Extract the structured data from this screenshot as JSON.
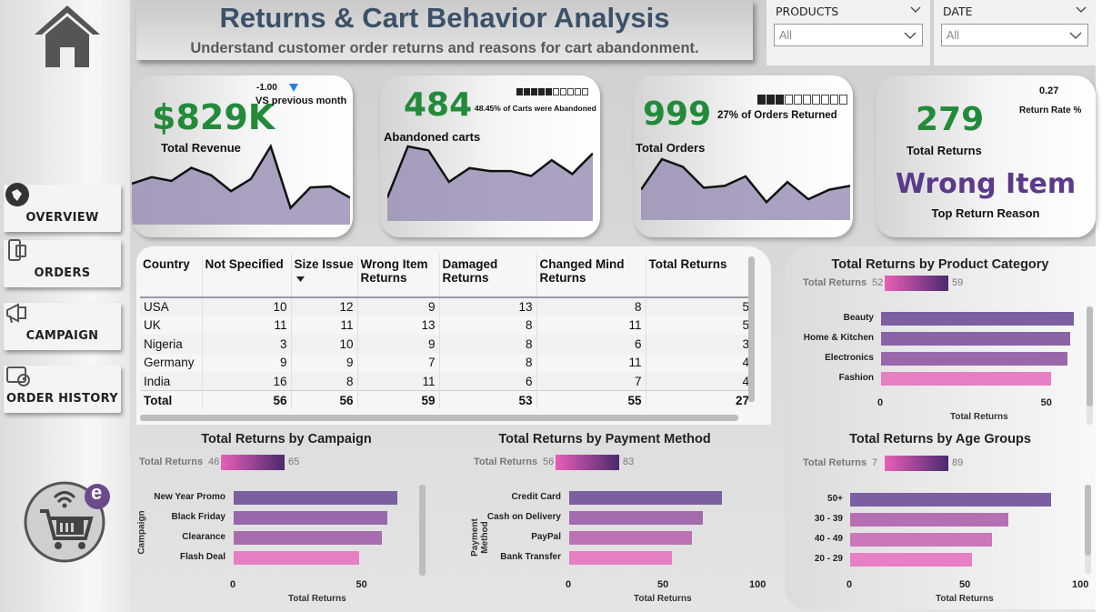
{
  "page": {
    "title": "Returns & Cart Behavior Analysis",
    "subtitle": "Understand customer order returns and reasons for cart abandonment."
  },
  "sidebar": {
    "items": [
      {
        "label": "OVERVIEW",
        "icon": "overview-icon"
      },
      {
        "label": "ORDERS",
        "icon": "orders-icon"
      },
      {
        "label": "CAMPAIGN",
        "icon": "megaphone-icon"
      },
      {
        "label": "ORDER HISTORY",
        "icon": "history-icon"
      }
    ],
    "logo_letter": "e"
  },
  "filters": {
    "products": {
      "label": "PRODUCTS",
      "value": "All"
    },
    "date": {
      "label": "DATE",
      "value": "All"
    }
  },
  "kpis": {
    "revenue": {
      "value": "$829K",
      "label": "Total Revenue",
      "delta": "-1.00",
      "delta_label": "VS previous month"
    },
    "abandoned": {
      "value": "484",
      "label": "Abandoned carts",
      "note": "48.45% of Carts were Abandoned",
      "progress": 0.48
    },
    "orders": {
      "value": "999",
      "label": "Total Orders",
      "note": "27% of Orders Returned",
      "progress": 0.27
    },
    "returns": {
      "value": "279",
      "label": "Total Returns",
      "rate": "0.27",
      "rate_label": "Return Rate %",
      "top_reason": "Wrong Item",
      "top_reason_label": "Top Return Reason"
    }
  },
  "colors": {
    "kpi_green": "#228b3a",
    "title_blue": "#3b5169",
    "reason_purple": "#5b3a8a",
    "spark_fill": "#9c92b6",
    "gradient_low": "#e85fb8",
    "gradient_high": "#4a2a6e"
  },
  "table": {
    "headers": [
      "Country",
      "Not Specified",
      "Size Issue",
      "Wrong Item Returns",
      "Damaged Returns",
      "Changed Mind Returns",
      "Total Returns"
    ],
    "rows": [
      [
        "USA",
        "10",
        "12",
        "9",
        "13",
        "8",
        "5"
      ],
      [
        "UK",
        "11",
        "11",
        "13",
        "8",
        "11",
        "5"
      ],
      [
        "Nigeria",
        "3",
        "10",
        "9",
        "8",
        "6",
        "3"
      ],
      [
        "Germany",
        "9",
        "9",
        "7",
        "8",
        "11",
        "4"
      ],
      [
        "India",
        "16",
        "8",
        "11",
        "6",
        "7",
        "4"
      ]
    ],
    "total": [
      "Total",
      "56",
      "56",
      "59",
      "53",
      "55",
      "27"
    ]
  },
  "chart_data": [
    {
      "type": "bar",
      "title": "Total Returns by Product Category",
      "categories": [
        "Beauty",
        "Home & Kitchen",
        "Electronics",
        "Fashion"
      ],
      "values": [
        59,
        58,
        57,
        52
      ],
      "legend_label": "Total Returns",
      "legend_min": "52",
      "legend_max": "59",
      "xlabel": "Total Returns",
      "ylabel": "",
      "xlim": [
        0,
        59
      ],
      "ticks": [
        "0",
        "50"
      ],
      "tick_values": [
        0,
        50
      ]
    },
    {
      "type": "bar",
      "title": "Total Returns by Campaign",
      "categories": [
        "New Year Promo",
        "Black Friday",
        "Clearance",
        "Flash Deal"
      ],
      "values": [
        65,
        61,
        59,
        50
      ],
      "legend_label": "Total Returns",
      "legend_min": "46",
      "legend_max": "65",
      "xlabel": "Total Returns",
      "ylabel": "Campaign",
      "xlim": [
        0,
        65
      ],
      "ticks": [
        "0",
        "50"
      ],
      "tick_values": [
        0,
        50
      ]
    },
    {
      "type": "bar",
      "title": "Total Returns by Payment Method",
      "categories": [
        "Credit Card",
        "Cash on Delivery",
        "PayPal",
        "Bank Transfer"
      ],
      "values": [
        83,
        73,
        67,
        56
      ],
      "legend_label": "Total Returns",
      "legend_min": "56",
      "legend_max": "83",
      "xlabel": "Total Returns",
      "ylabel": "Payment Method",
      "xlim": [
        0,
        100
      ],
      "ticks": [
        "0",
        "50",
        "100"
      ],
      "tick_values": [
        0,
        50,
        100
      ]
    },
    {
      "type": "bar",
      "title": "Total Returns by Age Groups",
      "categories": [
        "50+",
        "30 - 39",
        "40 - 49",
        "20 - 29"
      ],
      "values": [
        89,
        70,
        63,
        54
      ],
      "legend_label": "Total Returns",
      "legend_min": "7",
      "legend_max": "89",
      "xlabel": "Total Returns",
      "ylabel": "",
      "xlim": [
        0,
        100
      ],
      "ticks": [
        "0",
        "50",
        "100"
      ],
      "tick_values": [
        0,
        50,
        100
      ]
    }
  ],
  "sparklines": {
    "revenue": [
      40,
      47,
      43,
      57,
      49,
      32,
      45,
      80,
      14,
      36,
      37,
      25
    ],
    "abandoned": [
      20,
      72,
      68,
      36,
      50,
      47,
      47,
      42,
      58,
      44,
      65
    ],
    "orders": [
      28,
      60,
      52,
      30,
      32,
      42,
      15,
      36,
      18,
      28,
      32
    ]
  }
}
